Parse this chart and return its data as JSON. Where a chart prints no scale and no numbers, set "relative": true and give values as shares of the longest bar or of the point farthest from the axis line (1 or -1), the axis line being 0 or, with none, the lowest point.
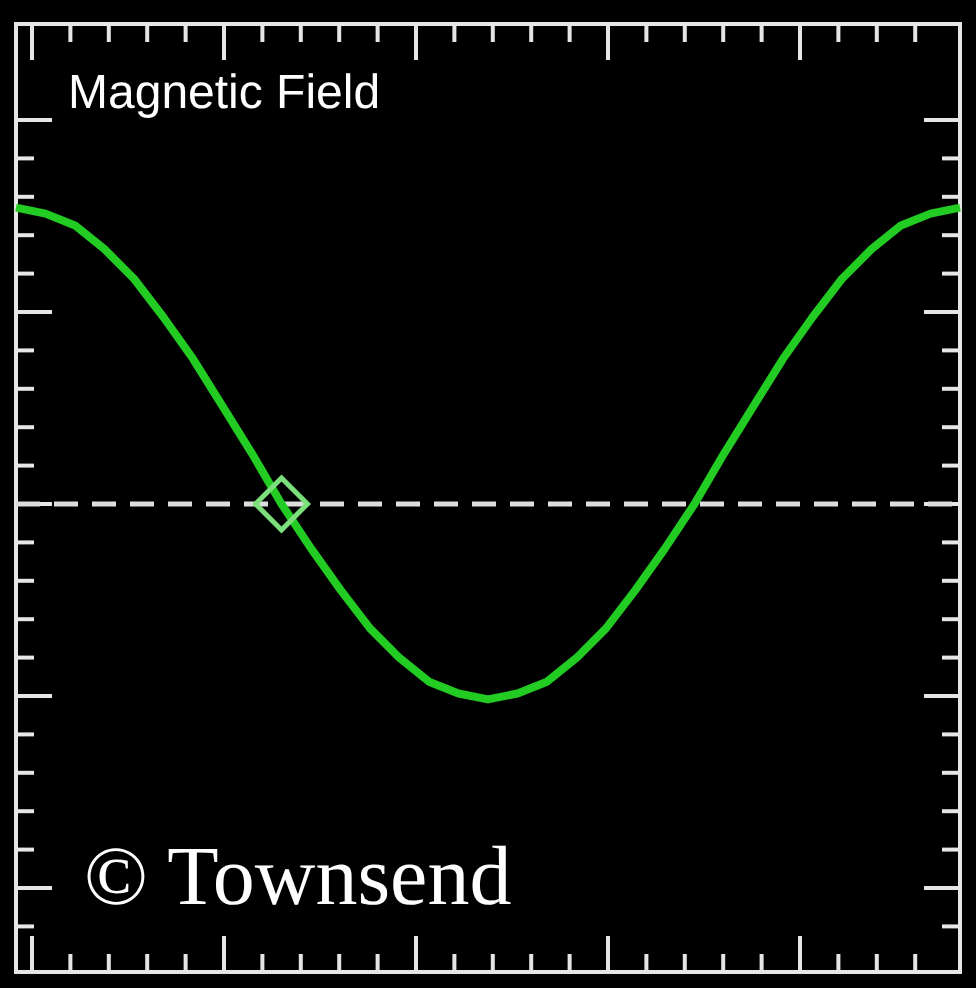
{
  "chart_data": {
    "type": "line",
    "title": "Magnetic Field",
    "relative": true,
    "categories": [
      null,
      null,
      null,
      null,
      null,
      null,
      null,
      null,
      null,
      null,
      null,
      null,
      null,
      null,
      null,
      null,
      null,
      null,
      null,
      null,
      null,
      null,
      null,
      null,
      null,
      null,
      null,
      null,
      null,
      null,
      null,
      null,
      null
    ],
    "series": [
      {
        "type": "line",
        "color": "#22cc22",
        "values": [
          1.0,
          0.98,
          0.94,
          0.86,
          0.76,
          0.63,
          0.49,
          0.33,
          0.17,
          0.0,
          -0.15,
          -0.29,
          -0.42,
          -0.52,
          -0.6,
          -0.64,
          -0.66,
          -0.64,
          -0.6,
          -0.52,
          -0.42,
          -0.29,
          -0.15,
          0.0,
          0.17,
          0.33,
          0.49,
          0.63,
          0.76,
          0.86,
          0.94,
          0.98,
          1.0
        ]
      }
    ],
    "ref_lines": [
      {
        "axis": "y",
        "value": 0,
        "color": "#dddddd",
        "line_style": "dashed"
      }
    ],
    "annotations": [
      "© Townsend"
    ]
  }
}
